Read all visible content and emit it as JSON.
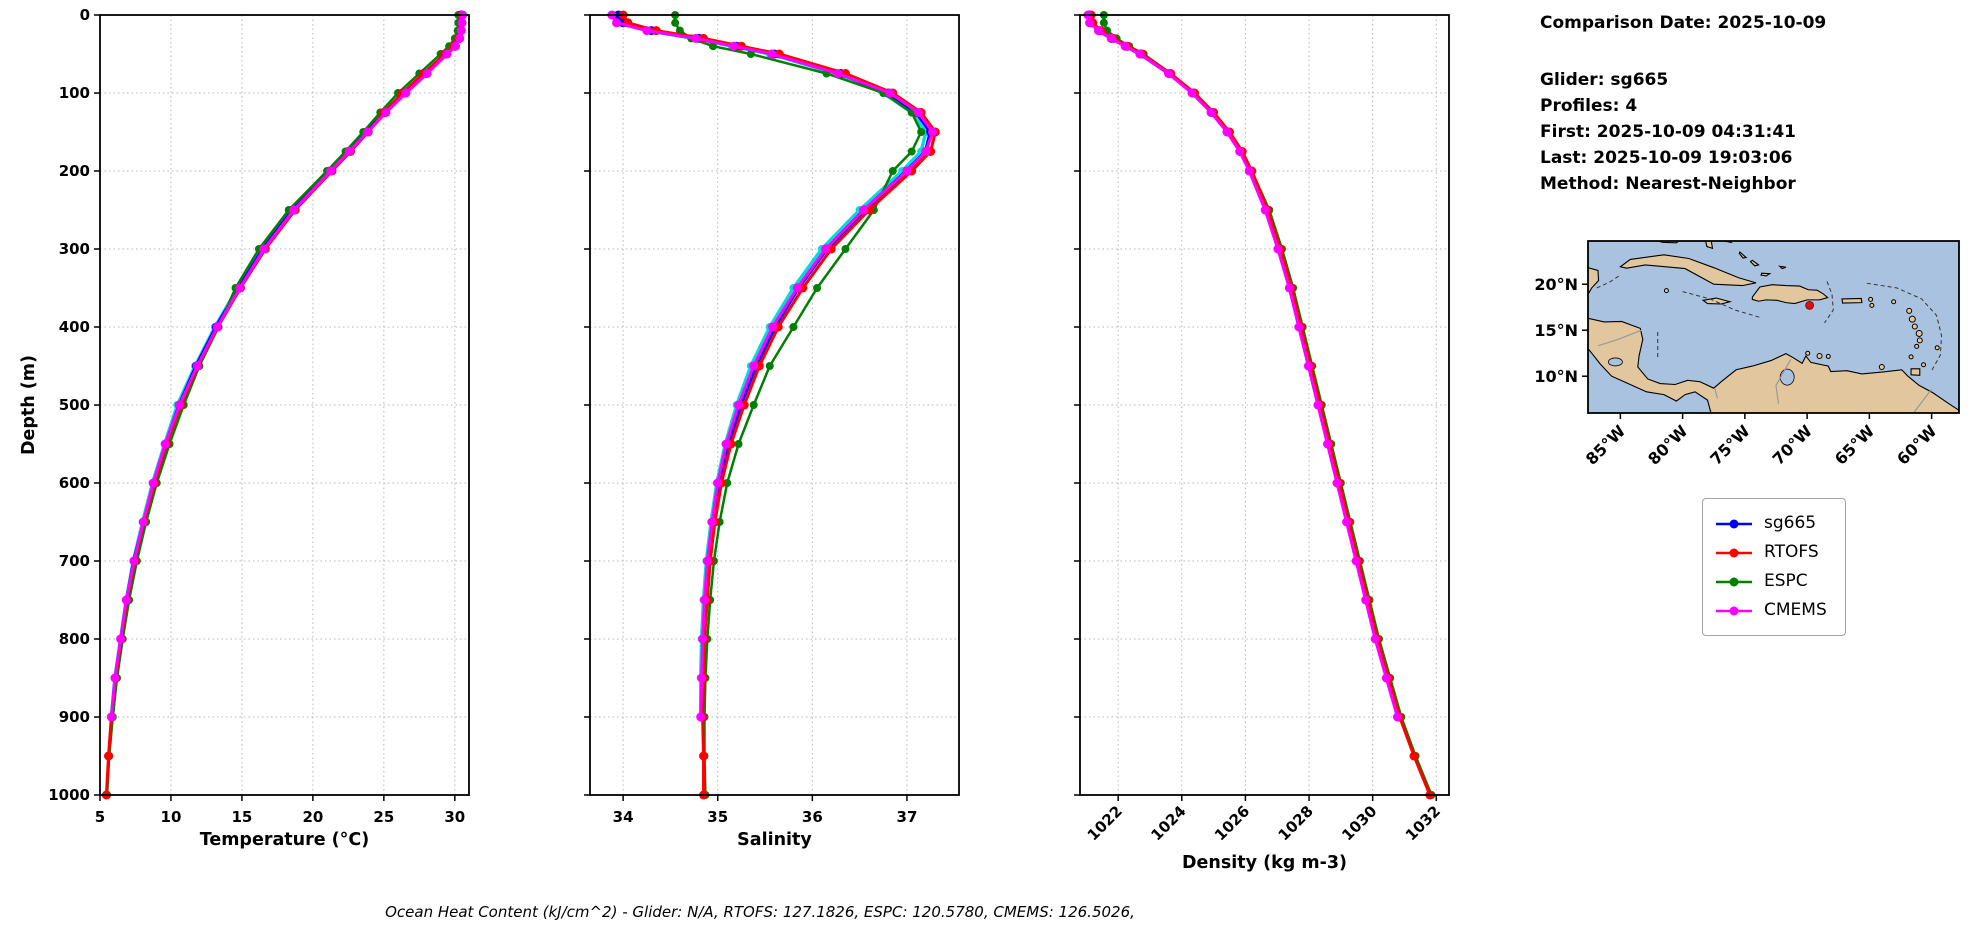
{
  "info_panel": {
    "lines": [
      "Comparison Date: 2025-10-09",
      "Glider: sg665",
      "Profiles: 4",
      "First: 2025-10-09 04:31:41",
      "Last: 2025-10-09 19:03:06",
      "Method: Nearest-Neighbor"
    ]
  },
  "footer": {
    "ohc_caption": "Ocean Heat Content (kJ/cm^2) - Glider: N/A,  RTOFS: 127.1826,  ESPC: 120.5780,  CMEMS: 126.5026,"
  },
  "legend": {
    "entries": [
      {
        "label": "sg665",
        "color": "#0000ff"
      },
      {
        "label": "RTOFS",
        "color": "#ff0000"
      },
      {
        "label": "ESPC",
        "color": "#008000"
      },
      {
        "label": "CMEMS",
        "color": "#ff00ff"
      }
    ]
  },
  "map": {
    "water_color": "#a9c2df",
    "land_color": "#e2c69d",
    "coast_color": "#000000",
    "marker_color": "#dd1111",
    "extent": {
      "lon": [
        -87.6,
        -57.8
      ],
      "lat": [
        6.0,
        24.7
      ]
    },
    "yticks": [
      {
        "label": "20°N",
        "lat": 20
      },
      {
        "label": "15°N",
        "lat": 15
      },
      {
        "label": "10°N",
        "lat": 10
      }
    ],
    "xticks": [
      {
        "label": "85°W",
        "lon": -85
      },
      {
        "label": "80°W",
        "lon": -80
      },
      {
        "label": "75°W",
        "lon": -75
      },
      {
        "label": "70°W",
        "lon": -70
      },
      {
        "label": "65°W",
        "lon": -65
      },
      {
        "label": "60°W",
        "lon": -60
      }
    ],
    "glider_marker": {
      "lon": -69.8,
      "lat": 17.7
    }
  },
  "chart_data": [
    {
      "type": "line",
      "title": "",
      "xlabel": "Temperature (°C)",
      "ylabel": "Depth (m)",
      "xlim": [
        5,
        31
      ],
      "ylim": [
        0,
        1000
      ],
      "xticks": [
        5,
        10,
        15,
        20,
        25,
        30
      ],
      "yticks": [
        0,
        100,
        200,
        300,
        400,
        500,
        600,
        700,
        800,
        900,
        1000
      ],
      "grid": true,
      "depths": [
        0,
        10,
        20,
        30,
        40,
        50,
        75,
        100,
        125,
        150,
        175,
        200,
        250,
        300,
        350,
        400,
        450,
        500,
        550,
        600,
        650,
        700,
        750,
        800,
        850,
        900,
        950,
        1000
      ],
      "series": [
        {
          "name": "sg665-2",
          "color": "#00dcdc",
          "width": 3.5,
          "r": 4,
          "values": [
            30.3,
            30.35,
            30.35,
            30.25,
            29.95,
            29.35,
            27.9,
            26.4,
            25.0,
            23.7,
            22.4,
            21.1,
            18.5,
            16.4,
            14.7,
            13.1,
            11.7,
            10.45,
            9.55,
            8.7,
            8.0,
            7.35,
            6.85,
            6.45,
            6.05,
            5.8,
            null,
            null
          ]
        },
        {
          "name": "sg665",
          "color": "#0000ff",
          "width": 4,
          "r": 4.5,
          "values": [
            30.4,
            30.4,
            30.38,
            30.3,
            30.0,
            29.4,
            28.0,
            26.5,
            25.1,
            23.8,
            22.5,
            21.2,
            18.6,
            16.5,
            14.8,
            13.2,
            11.8,
            10.6,
            9.65,
            8.8,
            8.1,
            7.4,
            6.9,
            6.5,
            6.1,
            5.85,
            null,
            null
          ]
        },
        {
          "name": "ESPC",
          "color": "#008000",
          "width": 2.5,
          "r": 4,
          "values": [
            30.25,
            30.25,
            30.2,
            30.0,
            29.6,
            29.0,
            27.5,
            26.0,
            24.75,
            23.55,
            22.3,
            21.0,
            18.3,
            16.2,
            14.55,
            13.35,
            12.0,
            10.9,
            9.9,
            9.0,
            8.25,
            7.6,
            7.05,
            6.6,
            6.2,
            5.9,
            5.65,
            5.5
          ]
        },
        {
          "name": "RTOFS",
          "color": "#ff0000",
          "width": 3,
          "r": 4.5,
          "values": [
            30.5,
            30.5,
            30.45,
            30.25,
            29.9,
            29.3,
            27.8,
            26.3,
            25.0,
            23.9,
            22.65,
            21.35,
            18.75,
            16.65,
            14.9,
            13.3,
            11.9,
            10.7,
            9.7,
            8.85,
            8.1,
            7.45,
            6.9,
            6.5,
            6.1,
            5.8,
            5.6,
            5.45
          ]
        },
        {
          "name": "CMEMS",
          "color": "#ff00ff",
          "width": 3,
          "r": 4.5,
          "values": [
            30.55,
            30.5,
            30.45,
            30.35,
            30.05,
            29.45,
            28.05,
            26.55,
            25.15,
            23.85,
            22.55,
            21.25,
            18.65,
            16.55,
            14.85,
            13.25,
            11.85,
            10.6,
            9.6,
            8.75,
            8.05,
            7.4,
            6.85,
            6.45,
            6.05,
            5.8,
            null,
            null
          ]
        }
      ]
    },
    {
      "type": "line",
      "title": "",
      "xlabel": "Salinity",
      "ylabel": "",
      "xlim": [
        33.65,
        37.55
      ],
      "ylim": [
        0,
        1000
      ],
      "xticks": [
        34,
        35,
        36,
        37
      ],
      "yticks": [
        0,
        100,
        200,
        300,
        400,
        500,
        600,
        700,
        800,
        900,
        1000
      ],
      "grid": true,
      "depths": [
        0,
        10,
        20,
        30,
        40,
        50,
        75,
        100,
        125,
        150,
        175,
        200,
        250,
        300,
        350,
        400,
        450,
        500,
        550,
        600,
        650,
        700,
        750,
        800,
        850,
        900,
        950,
        1000
      ],
      "series": [
        {
          "name": "sg665-2",
          "color": "#00dcdc",
          "width": 3.5,
          "r": 4,
          "values": [
            33.9,
            33.95,
            34.25,
            34.75,
            35.15,
            35.55,
            36.25,
            36.75,
            37.05,
            37.2,
            37.15,
            36.95,
            36.5,
            36.1,
            35.8,
            35.55,
            35.35,
            35.2,
            35.08,
            34.99,
            34.93,
            34.88,
            34.85,
            34.83,
            34.82,
            34.82,
            null,
            null
          ]
        },
        {
          "name": "sg665",
          "color": "#0000ff",
          "width": 4,
          "r": 4.5,
          "values": [
            33.95,
            34.0,
            34.3,
            34.8,
            35.2,
            35.6,
            36.3,
            36.8,
            37.1,
            37.25,
            37.2,
            37.0,
            36.55,
            36.15,
            35.85,
            35.6,
            35.4,
            35.24,
            35.11,
            35.01,
            34.95,
            34.9,
            34.87,
            34.85,
            34.84,
            34.83,
            null,
            null
          ]
        },
        {
          "name": "ESPC",
          "color": "#008000",
          "width": 2.5,
          "r": 4,
          "values": [
            34.55,
            34.55,
            34.6,
            34.72,
            34.95,
            35.35,
            36.15,
            36.75,
            37.05,
            37.15,
            37.05,
            36.85,
            36.65,
            36.35,
            36.05,
            35.8,
            35.55,
            35.38,
            35.22,
            35.1,
            35.02,
            34.96,
            34.92,
            34.89,
            34.87,
            34.86,
            34.86,
            34.87
          ]
        },
        {
          "name": "RTOFS",
          "color": "#ff0000",
          "width": 3,
          "r": 4.5,
          "values": [
            34.0,
            34.05,
            34.35,
            34.85,
            35.25,
            35.65,
            36.35,
            36.85,
            37.15,
            37.3,
            37.25,
            37.05,
            36.6,
            36.2,
            35.9,
            35.64,
            35.44,
            35.28,
            35.14,
            35.04,
            34.97,
            34.92,
            34.89,
            34.86,
            34.85,
            34.84,
            34.85,
            34.85
          ]
        },
        {
          "name": "CMEMS",
          "color": "#ff00ff",
          "width": 3,
          "r": 4.5,
          "values": [
            33.88,
            33.93,
            34.25,
            34.77,
            35.17,
            35.57,
            36.27,
            36.82,
            37.12,
            37.27,
            37.2,
            37.0,
            36.54,
            36.14,
            35.84,
            35.58,
            35.38,
            35.22,
            35.09,
            35.0,
            34.94,
            34.89,
            34.86,
            34.84,
            34.83,
            34.82,
            null,
            null
          ]
        }
      ]
    },
    {
      "type": "line",
      "title": "",
      "xlabel": "Density (kg m-3)",
      "ylabel": "",
      "xlim": [
        1020.8,
        1032.4
      ],
      "ylim": [
        0,
        1000
      ],
      "xticks": [
        1022,
        1024,
        1026,
        1028,
        1030,
        1032
      ],
      "yticks": [
        0,
        100,
        200,
        300,
        400,
        500,
        600,
        700,
        800,
        900,
        1000
      ],
      "grid": true,
      "rotate_xticks": true,
      "depths": [
        0,
        10,
        20,
        30,
        40,
        50,
        75,
        100,
        125,
        150,
        175,
        200,
        250,
        300,
        350,
        400,
        450,
        500,
        550,
        600,
        650,
        700,
        750,
        800,
        850,
        900,
        950,
        1000
      ],
      "series": [
        {
          "name": "sg665",
          "color": "#0000ff",
          "width": 4,
          "r": 4.5,
          "values": [
            1021.1,
            1021.15,
            1021.4,
            1021.8,
            1022.25,
            1022.7,
            1023.6,
            1024.35,
            1024.95,
            1025.45,
            1025.85,
            1026.15,
            1026.65,
            1027.05,
            1027.4,
            1027.7,
            1028.0,
            1028.3,
            1028.6,
            1028.9,
            1029.2,
            1029.5,
            1029.8,
            1030.1,
            1030.45,
            1030.8,
            null,
            null
          ]
        },
        {
          "name": "ESPC",
          "color": "#008000",
          "width": 2.5,
          "r": 4,
          "values": [
            1021.55,
            1021.55,
            1021.65,
            1021.95,
            1022.35,
            1022.8,
            1023.65,
            1024.4,
            1025.0,
            1025.5,
            1025.9,
            1026.2,
            1026.75,
            1027.15,
            1027.5,
            1027.8,
            1028.1,
            1028.4,
            1028.7,
            1029.0,
            1029.3,
            1029.6,
            1029.9,
            1030.2,
            1030.55,
            1030.9,
            1031.35,
            1031.85
          ]
        },
        {
          "name": "RTOFS",
          "color": "#ff0000",
          "width": 3,
          "r": 4.5,
          "values": [
            1021.15,
            1021.2,
            1021.45,
            1021.85,
            1022.3,
            1022.75,
            1023.65,
            1024.4,
            1025.0,
            1025.5,
            1025.9,
            1026.2,
            1026.7,
            1027.1,
            1027.45,
            1027.75,
            1028.05,
            1028.35,
            1028.65,
            1028.95,
            1029.25,
            1029.55,
            1029.85,
            1030.15,
            1030.5,
            1030.85,
            1031.3,
            1031.8
          ]
        },
        {
          "name": "CMEMS",
          "color": "#ff00ff",
          "width": 3,
          "r": 4.5,
          "values": [
            1021.05,
            1021.1,
            1021.38,
            1021.78,
            1022.22,
            1022.68,
            1023.58,
            1024.32,
            1024.92,
            1025.42,
            1025.82,
            1026.12,
            1026.62,
            1027.02,
            1027.38,
            1027.68,
            1027.98,
            1028.28,
            1028.58,
            1028.88,
            1029.18,
            1029.48,
            1029.78,
            1030.08,
            1030.43,
            1030.78,
            null,
            null
          ]
        }
      ]
    }
  ]
}
